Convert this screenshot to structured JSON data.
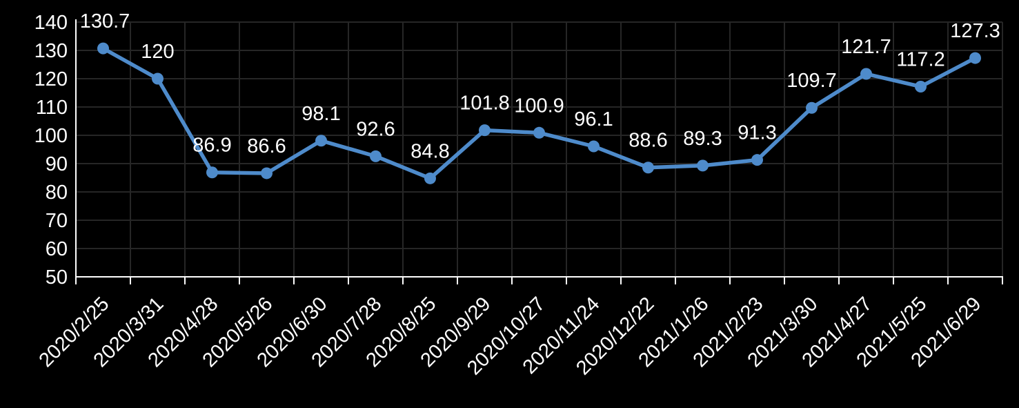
{
  "chart_data": {
    "type": "line",
    "title": "",
    "xlabel": "",
    "ylabel": "",
    "legend_position": "none",
    "grid": true,
    "categories": [
      "2020/2/25",
      "2020/3/31",
      "2020/4/28",
      "2020/5/26",
      "2020/6/30",
      "2020/7/28",
      "2020/8/25",
      "2020/9/29",
      "2020/10/27",
      "2020/11/24",
      "2020/12/22",
      "2021/1/26",
      "2021/2/23",
      "2021/3/30",
      "2021/4/27",
      "2021/5/25",
      "2021/6/29"
    ],
    "values": [
      130.7,
      120,
      86.9,
      86.6,
      98.1,
      92.6,
      84.8,
      101.8,
      100.9,
      96.1,
      88.6,
      89.3,
      91.3,
      109.7,
      121.7,
      117.2,
      127.3
    ],
    "data_labels": [
      "130.7",
      "120",
      "86.9",
      "86.6",
      "98.1",
      "92.6",
      "84.8",
      "101.8",
      "100.9",
      "96.1",
      "88.6",
      "89.3",
      "91.3",
      "109.7",
      "121.7",
      "117.2",
      "127.3"
    ],
    "ylim": [
      50,
      140
    ],
    "ytick_step": 10,
    "yticks": [
      50,
      60,
      70,
      80,
      90,
      100,
      110,
      120,
      130,
      140
    ],
    "colors": {
      "background": "#000000",
      "line": "#4e8bcb",
      "marker": "#4e8bcb",
      "gridline": "#262626",
      "axis": "#ffffff",
      "text": "#ffffff"
    }
  }
}
